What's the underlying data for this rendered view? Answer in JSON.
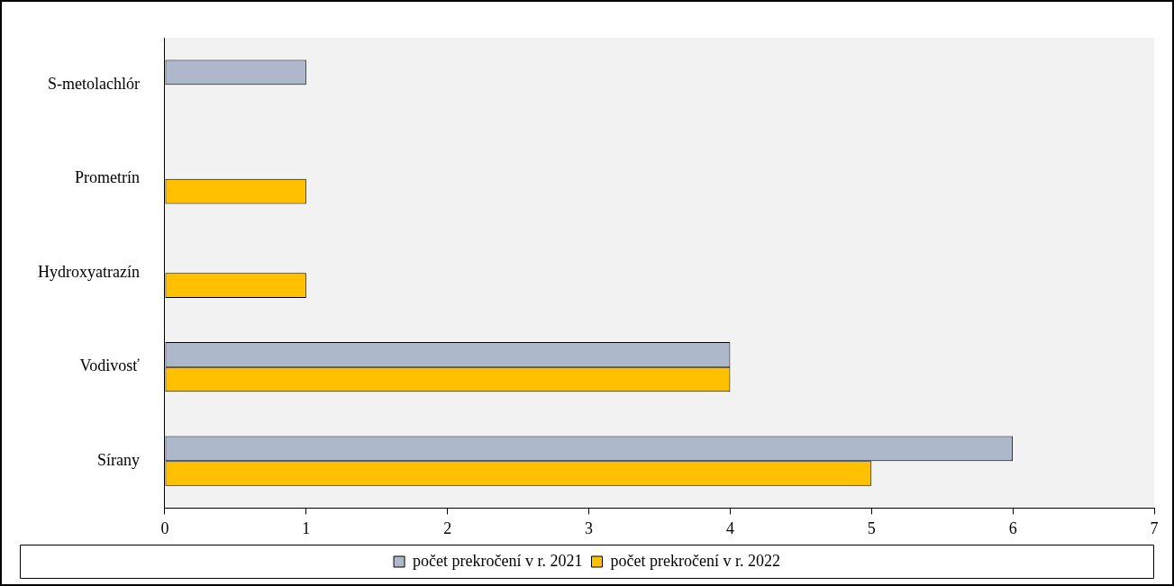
{
  "chart_data": {
    "type": "bar",
    "orientation": "horizontal",
    "categories": [
      "S-metolachlór",
      "Prometrín",
      "Hydroxyatrazín",
      "Vodivosť",
      "Sírany"
    ],
    "series": [
      {
        "name": "počet prekročení v r. 2021",
        "color": "#adb9ca",
        "values": [
          1,
          null,
          null,
          4,
          6
        ]
      },
      {
        "name": "počet prekročení v r. 2022",
        "color": "#ffc000",
        "values": [
          null,
          1,
          1,
          4,
          5
        ]
      }
    ],
    "xlim": [
      0,
      7
    ],
    "xticks": [
      0,
      1,
      2,
      3,
      4,
      5,
      6,
      7
    ],
    "grid": false,
    "legend": "bottom"
  }
}
